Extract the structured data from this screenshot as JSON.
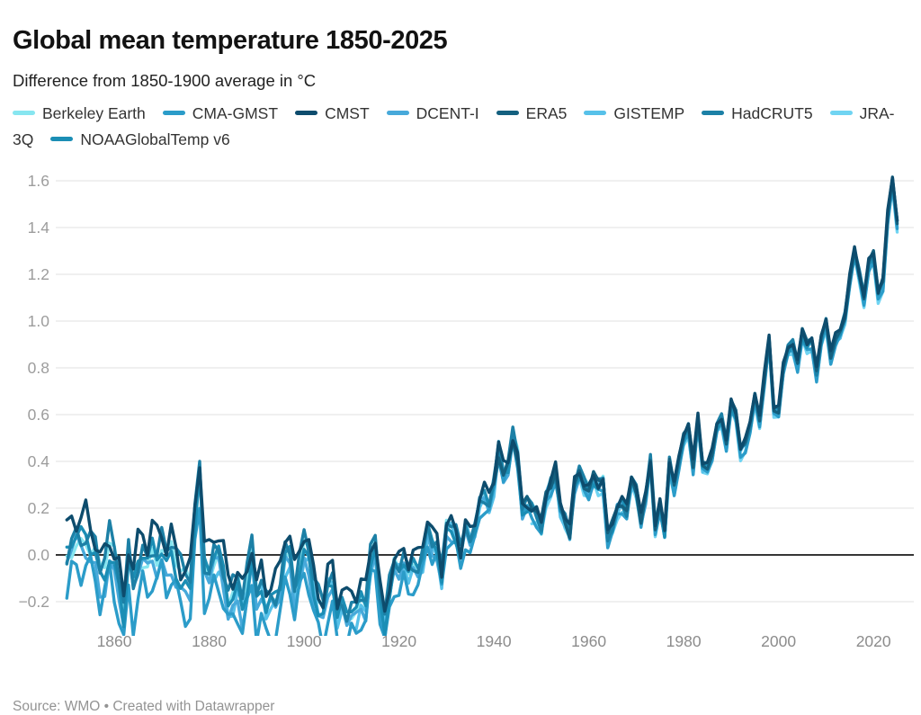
{
  "header": {
    "title": "Global mean temperature 1850-2025",
    "subtitle": "Difference from 1850-1900 average in °C"
  },
  "footer": {
    "text": "Source: WMO • Created with Datawrapper"
  },
  "chart_data": {
    "type": "line",
    "title": "Global mean temperature 1850-2025",
    "subtitle": "Difference from 1850-1900 average in °C",
    "xlabel": "",
    "ylabel": "Difference from 1850-1900 average in °C",
    "x_start": 1850,
    "x_end": 2025,
    "x_ticks": [
      1860,
      1880,
      1900,
      1920,
      1940,
      1960,
      1980,
      2000,
      2020
    ],
    "y_ticks": [
      1.6,
      1.4,
      1.2,
      1.0,
      0.8,
      0.6,
      0.4,
      0.2,
      0.0,
      -0.2
    ],
    "ylim": [
      -0.34,
      1.65
    ],
    "baseline_value": 0,
    "grid": "horizontal",
    "legend_position": "top",
    "colors": {
      "grid": "#e7e7e7",
      "zero_line": "#1a1a1a",
      "y_tick_label": "#9d9d9d",
      "x_tick_label": "#8c8c8c"
    },
    "base_values": [
      0.02,
      0.08,
      0.06,
      0.04,
      0.08,
      0.04,
      -0.02,
      -0.1,
      -0.04,
      0.04,
      -0.04,
      -0.1,
      -0.22,
      0.0,
      -0.14,
      -0.02,
      0.02,
      -0.06,
      0.01,
      0.0,
      0.03,
      -0.06,
      0.02,
      -0.02,
      -0.1,
      -0.12,
      -0.1,
      0.18,
      0.35,
      -0.05,
      -0.05,
      0.0,
      -0.02,
      -0.08,
      -0.18,
      -0.18,
      -0.15,
      -0.2,
      -0.1,
      0.0,
      -0.18,
      -0.1,
      -0.2,
      -0.2,
      -0.18,
      -0.12,
      0.0,
      -0.02,
      -0.15,
      -0.05,
      0.02,
      -0.02,
      -0.12,
      -0.2,
      -0.25,
      -0.12,
      -0.08,
      -0.25,
      -0.22,
      -0.25,
      -0.22,
      -0.25,
      -0.2,
      -0.2,
      -0.02,
      0.02,
      -0.18,
      -0.28,
      -0.15,
      -0.05,
      -0.05,
      0.0,
      -0.08,
      -0.05,
      -0.05,
      0.0,
      0.1,
      0.04,
      0.04,
      -0.1,
      0.1,
      0.12,
      0.1,
      0.0,
      0.12,
      0.08,
      0.12,
      0.22,
      0.25,
      0.22,
      0.3,
      0.45,
      0.35,
      0.38,
      0.5,
      0.42,
      0.2,
      0.22,
      0.2,
      0.18,
      0.12,
      0.25,
      0.3,
      0.35,
      0.2,
      0.15,
      0.1,
      0.3,
      0.35,
      0.3,
      0.28,
      0.33,
      0.3,
      0.32,
      0.08,
      0.12,
      0.2,
      0.22,
      0.18,
      0.32,
      0.28,
      0.15,
      0.25,
      0.4,
      0.12,
      0.22,
      0.1,
      0.4,
      0.3,
      0.4,
      0.5,
      0.55,
      0.38,
      0.58,
      0.38,
      0.38,
      0.43,
      0.55,
      0.58,
      0.48,
      0.65,
      0.6,
      0.45,
      0.48,
      0.55,
      0.68,
      0.58,
      0.75,
      0.92,
      0.62,
      0.62,
      0.8,
      0.88,
      0.9,
      0.82,
      0.95,
      0.9,
      0.92,
      0.78,
      0.92,
      1.0,
      0.85,
      0.92,
      0.95,
      1.02,
      1.18,
      1.3,
      1.2,
      1.1,
      1.25,
      1.28,
      1.12,
      1.17,
      1.45,
      1.6,
      1.42
    ],
    "series": [
      {
        "name": "Berkeley Earth",
        "color": "#87e6f0",
        "start_year": 1850,
        "early_offset": 0.0
      },
      {
        "name": "CMA-GMST",
        "color": "#2b9cc9",
        "start_year": 1850,
        "early_offset": -0.13
      },
      {
        "name": "CMST",
        "color": "#0d4c6d",
        "start_year": 1850,
        "early_offset": 0.07
      },
      {
        "name": "DCENT-I",
        "color": "#47a9da",
        "start_year": 1850,
        "early_offset": -0.05
      },
      {
        "name": "ERA5",
        "color": "#14607f",
        "start_year": 1940,
        "early_offset": 0.02
      },
      {
        "name": "GISTEMP",
        "color": "#57c1e9",
        "start_year": 1880,
        "early_offset": -0.04
      },
      {
        "name": "HadCRUT5",
        "color": "#1c80a6",
        "start_year": 1850,
        "early_offset": 0.03
      },
      {
        "name": "JRA-3Q",
        "color": "#70d4f2",
        "start_year": 1948,
        "early_offset": -0.15
      },
      {
        "name": "NOAAGlobalTemp v6",
        "color": "#1b8eb5",
        "start_year": 1850,
        "early_offset": -0.01
      }
    ]
  }
}
